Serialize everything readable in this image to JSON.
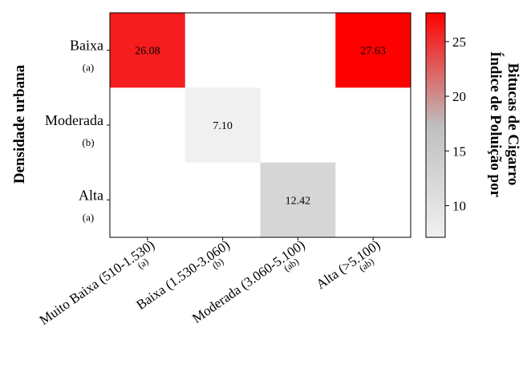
{
  "chart_data": {
    "type": "heatmap",
    "ylabel": "Densidade urbana",
    "rows": [
      {
        "label": "Baixa",
        "group": "(a)"
      },
      {
        "label": "Moderada",
        "group": "(b)"
      },
      {
        "label": "Alta",
        "group": "(a)"
      }
    ],
    "columns": [
      {
        "label": "Muito Baixa (510-1.530)",
        "group": "(a)"
      },
      {
        "label": "Baixa (1.530-3.060)",
        "group": "(b)"
      },
      {
        "label": "Moderada (3.060-5.100)",
        "group": "(ab)"
      },
      {
        "label": "Alta (>5.100)",
        "group": "(ab)"
      }
    ],
    "values": [
      [
        26.08,
        null,
        null,
        27.63
      ],
      [
        null,
        7.1,
        null,
        null
      ],
      [
        null,
        null,
        12.42,
        null
      ]
    ],
    "value_labels": [
      [
        "26.08",
        "",
        "",
        "27.63"
      ],
      [
        "",
        "7.10",
        "",
        ""
      ],
      [
        "",
        "",
        "12.42",
        ""
      ]
    ],
    "colorbar": {
      "label_line1": "Índice de Poluição por",
      "label_line2": "Bitucas de Cigarro",
      "min": 7.1,
      "max": 27.63,
      "ticks": [
        10,
        15,
        20,
        25
      ],
      "tick_labels": [
        "10",
        "15",
        "20",
        "25"
      ],
      "colormap": [
        "#f0f0f0",
        "#bebebe",
        "#ff0000"
      ]
    }
  }
}
